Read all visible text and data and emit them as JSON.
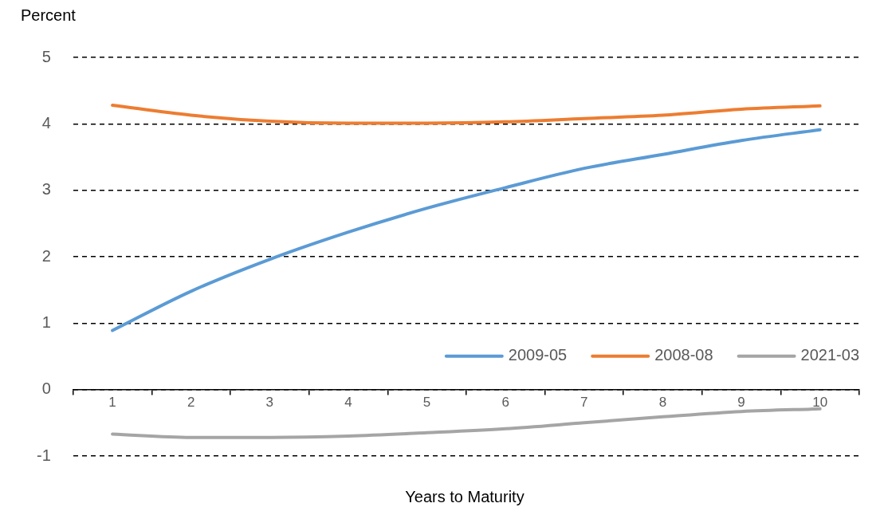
{
  "chart_data": {
    "type": "line",
    "ylabel": "Percent",
    "xlabel": "Years to Maturity",
    "categories": [
      "1",
      "2",
      "3",
      "4",
      "5",
      "6",
      "7",
      "8",
      "9",
      "10"
    ],
    "series": [
      {
        "name": "2009-05",
        "color": "#5b9bd5",
        "values": [
          0.89,
          1.48,
          1.96,
          2.37,
          2.73,
          3.04,
          3.33,
          3.54,
          3.75,
          3.91
        ]
      },
      {
        "name": "2008-08",
        "color": "#ed7d31",
        "values": [
          4.28,
          4.13,
          4.04,
          4.01,
          4.01,
          4.03,
          4.08,
          4.13,
          4.22,
          4.27
        ]
      },
      {
        "name": "2021-03",
        "color": "#a5a5a5",
        "values": [
          -0.67,
          -0.72,
          -0.72,
          -0.7,
          -0.65,
          -0.59,
          -0.5,
          -0.41,
          -0.33,
          -0.29
        ]
      }
    ],
    "ylim": [
      -1,
      5
    ],
    "yticks": [
      -1,
      0,
      1,
      2,
      3,
      4,
      5
    ],
    "grid": "y",
    "legend": "bottom right",
    "marker": "none",
    "line_style": "solid"
  }
}
